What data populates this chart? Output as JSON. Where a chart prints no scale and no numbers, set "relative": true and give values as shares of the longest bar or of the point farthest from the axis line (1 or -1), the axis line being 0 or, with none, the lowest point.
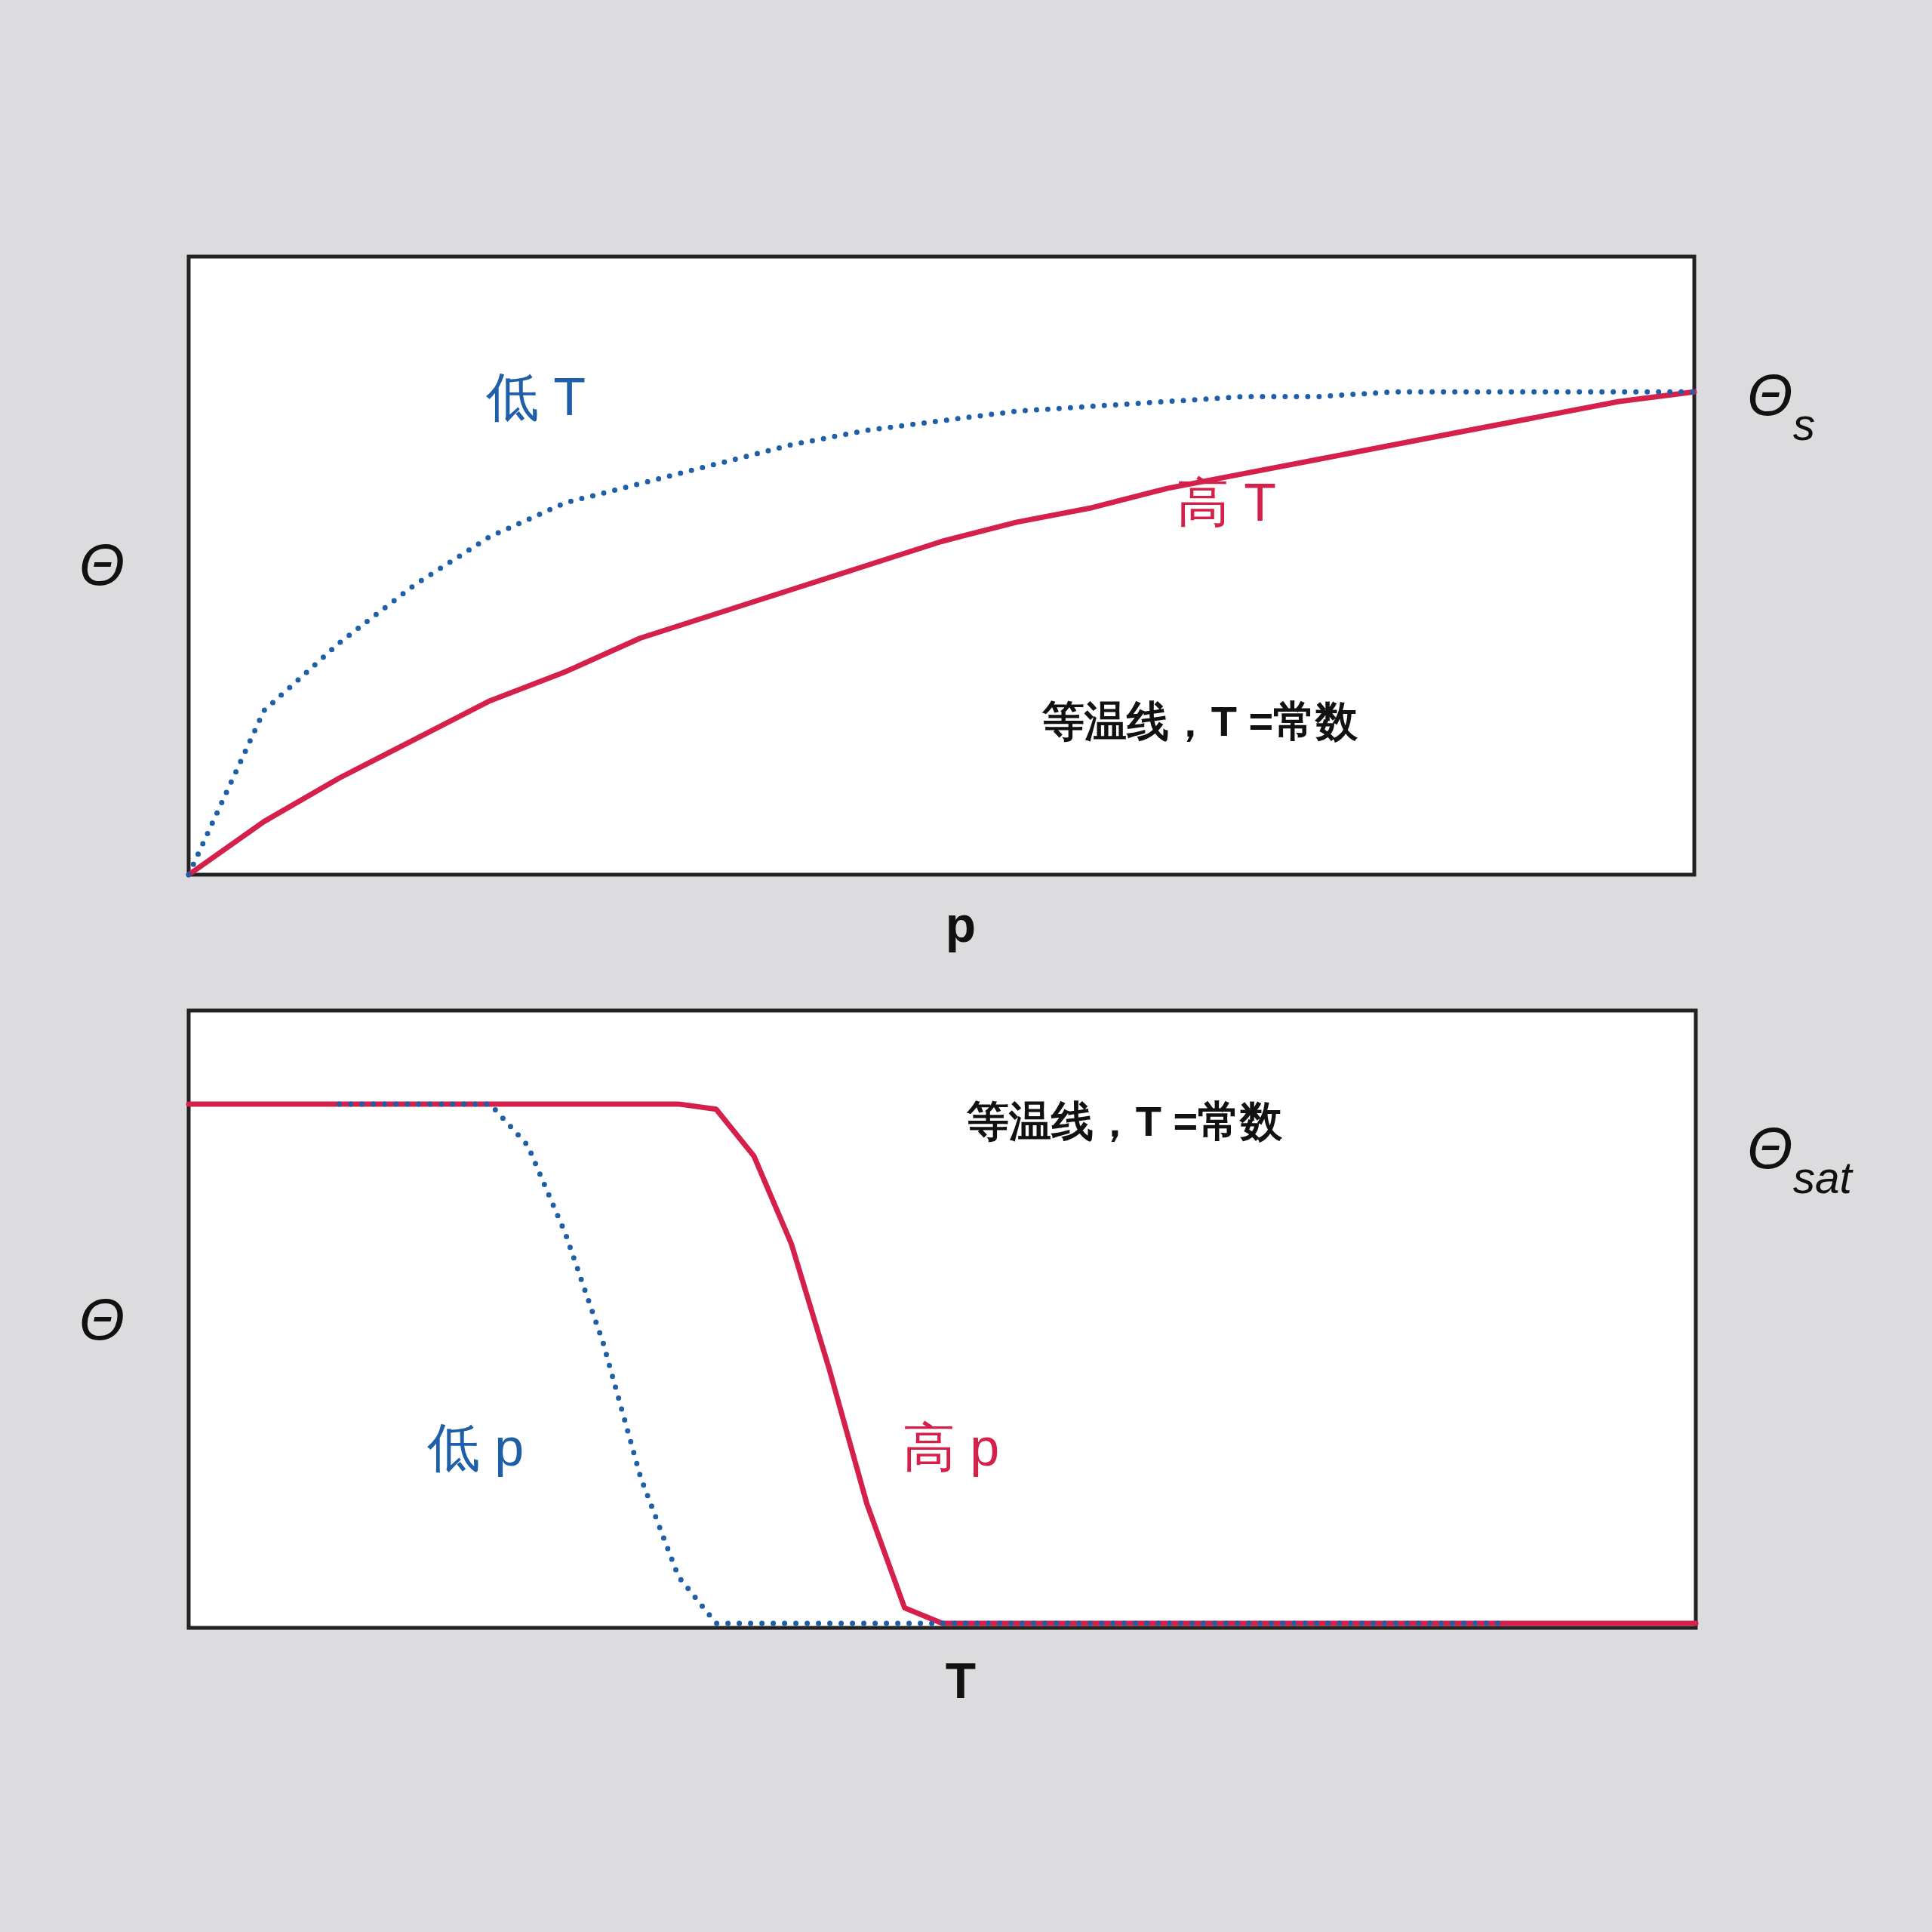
{
  "chart_data": [
    {
      "type": "line",
      "relative": true,
      "xlabel": "p",
      "ylabel": "Θ",
      "categories": [
        null,
        null,
        null,
        null,
        null,
        null,
        null,
        null,
        null,
        null,
        null,
        null,
        null,
        null,
        null,
        null,
        null,
        null,
        null,
        null,
        null
      ],
      "series": [
        {
          "color": "#1f5fa8",
          "line_style": "dotted",
          "values": [
            0,
            0.34,
            0.48,
            0.6,
            0.7,
            0.77,
            0.81,
            0.85,
            0.89,
            0.92,
            0.94,
            0.96,
            0.97,
            0.98,
            0.99,
            0.99,
            1,
            1,
            1,
            1,
            1
          ]
        },
        {
          "color": "#d4204a",
          "line_style": "solid",
          "values": [
            0,
            0.11,
            0.2,
            0.28,
            0.36,
            0.42,
            0.49,
            0.54,
            0.59,
            0.64,
            0.69,
            0.73,
            0.76,
            0.8,
            0.83,
            0.86,
            0.89,
            0.92,
            0.95,
            0.98,
            1
          ]
        }
      ],
      "annotations": [
        "低 T",
        "高 T",
        "等温线，T =常数",
        "Θ$_{s}$"
      ]
    },
    {
      "type": "line",
      "relative": true,
      "xlabel": "T",
      "ylabel": "Θ",
      "categories": [
        null,
        null,
        null,
        null,
        null,
        null,
        null,
        null,
        null,
        null,
        null,
        null,
        null,
        null,
        null,
        null,
        null,
        null,
        null,
        null,
        null,
        null,
        null,
        null,
        null,
        null,
        null,
        null,
        null,
        null,
        null,
        null,
        null,
        null,
        null,
        null,
        null,
        null,
        null,
        null,
        null
      ],
      "series": [
        {
          "color": "#1f5fa8",
          "line_style": "dotted",
          "values": [
            null,
            null,
            null,
            null,
            1,
            1,
            1,
            1,
            1,
            0.92,
            0.75,
            0.54,
            0.28,
            0.09,
            0,
            0,
            0,
            0,
            0,
            0,
            0,
            0,
            0,
            0,
            0,
            0,
            0,
            0,
            0,
            0,
            0,
            0,
            0,
            0,
            0,
            0,
            null,
            null,
            null,
            null,
            null
          ]
        },
        {
          "color": "#d4204a",
          "line_style": "solid",
          "values": [
            1,
            1,
            1,
            1,
            1,
            1,
            1,
            1,
            1,
            1,
            1,
            1,
            1,
            1,
            0.99,
            0.9,
            0.73,
            0.49,
            0.23,
            0.03,
            0,
            0,
            0,
            0,
            0,
            0,
            0,
            0,
            0,
            0,
            0,
            0,
            0,
            0,
            0,
            0,
            0,
            0,
            0,
            0,
            0
          ]
        }
      ],
      "annotations": [
        "低 p",
        "高 p",
        "等温线，T =常数",
        "Θ$_{sat}$"
      ]
    }
  ]
}
